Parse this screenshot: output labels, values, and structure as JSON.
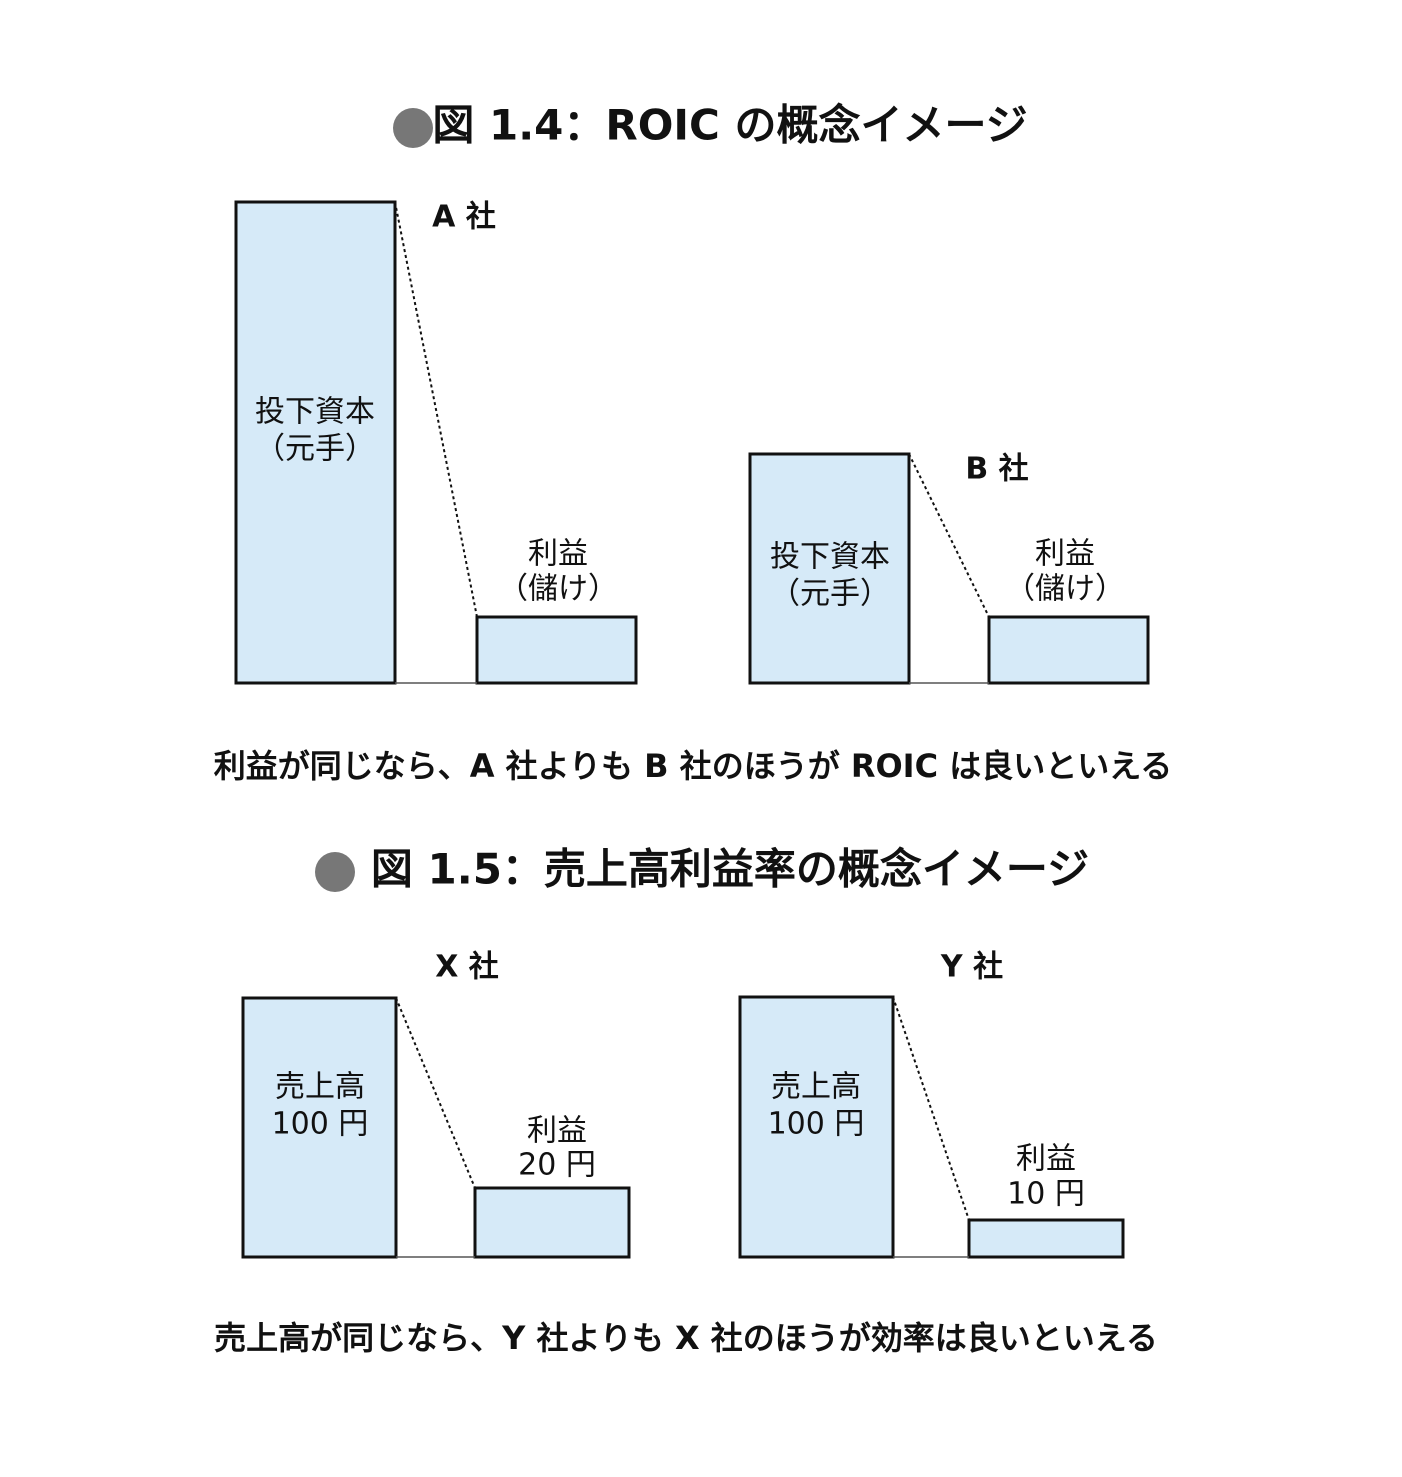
{
  "figures": [
    {
      "title": "図 1.4：ROIC の概念イメージ",
      "panels": [
        {
          "label": "A 社",
          "left": [
            "投下資本",
            "（元手）"
          ],
          "right": [
            "利益",
            "（儲け）"
          ]
        },
        {
          "label": "B 社",
          "left": [
            "投下資本",
            "（元手）"
          ],
          "right": [
            "利益",
            "（儲け）"
          ]
        }
      ],
      "caption": "利益が同じなら、A 社よりも B 社のほうが ROIC は良いといえる"
    },
    {
      "title": "図 1.5：売上高利益率の概念イメージ",
      "panels": [
        {
          "label": "X 社",
          "left": [
            "売上高",
            "100 円"
          ],
          "right": [
            "利益",
            "20 円"
          ]
        },
        {
          "label": "Y 社",
          "left": [
            "売上高",
            "100 円"
          ],
          "right": [
            "利益",
            "10 円"
          ]
        }
      ],
      "caption": "売上高が同じなら、Y 社よりも X 社のほうが効率は良いといえる"
    }
  ]
}
